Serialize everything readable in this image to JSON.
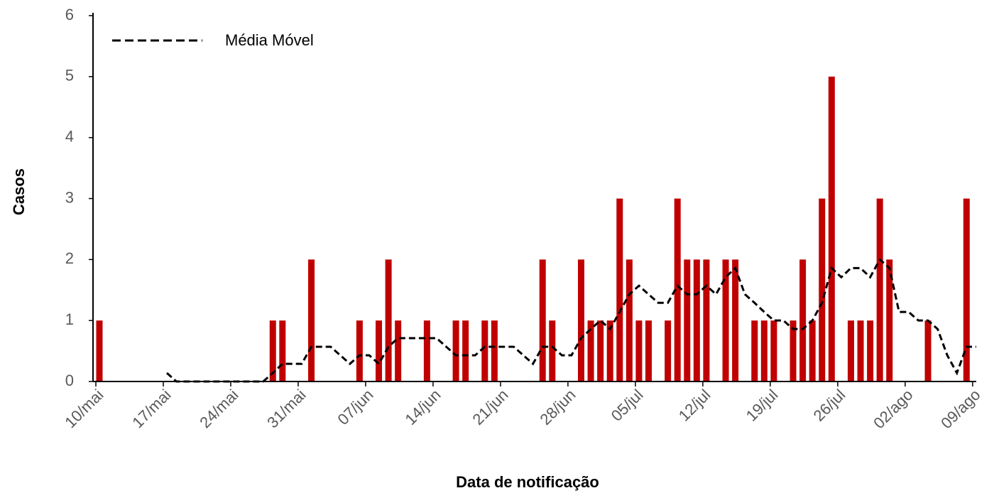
{
  "chart_data": {
    "type": "bar+line",
    "xlabel": "Data de notificação",
    "ylabel": "Casos",
    "categories": [
      "10/mai",
      null,
      null,
      null,
      null,
      null,
      null,
      "17/mai",
      null,
      null,
      null,
      null,
      null,
      null,
      "24/mai",
      null,
      null,
      null,
      null,
      null,
      null,
      "31/mai",
      null,
      null,
      null,
      null,
      null,
      null,
      "07/jun",
      null,
      null,
      null,
      null,
      null,
      null,
      "14/jun",
      null,
      null,
      null,
      null,
      null,
      null,
      "21/jun",
      null,
      null,
      null,
      null,
      null,
      null,
      "28/jun",
      null,
      null,
      null,
      null,
      null,
      null,
      "05/jul",
      null,
      null,
      null,
      null,
      null,
      null,
      "12/jul",
      null,
      null,
      null,
      null,
      null,
      null,
      "19/jul",
      null,
      null,
      null,
      null,
      null,
      null,
      "26/jul",
      null,
      null,
      null,
      null,
      null,
      null,
      "02/ago",
      null,
      null,
      null,
      null,
      null,
      null,
      "09/ago"
    ],
    "series": [
      {
        "type": "bar",
        "color": "#c00000",
        "values": [
          1,
          0,
          0,
          0,
          0,
          0,
          0,
          0,
          0,
          0,
          0,
          0,
          0,
          0,
          0,
          0,
          0,
          0,
          1,
          1,
          0,
          0,
          2,
          0,
          0,
          0,
          0,
          1,
          0,
          1,
          2,
          1,
          0,
          0,
          1,
          0,
          0,
          1,
          1,
          0,
          1,
          1,
          0,
          0,
          0,
          0,
          2,
          1,
          0,
          0,
          2,
          1,
          1,
          1,
          3,
          2,
          1,
          1,
          0,
          1,
          3,
          2,
          2,
          2,
          0,
          2,
          2,
          0,
          1,
          1,
          1,
          0,
          1,
          2,
          1,
          3,
          5,
          0,
          1,
          1,
          1,
          3,
          2,
          0,
          0,
          0,
          1,
          0,
          0,
          0,
          3,
          0
        ]
      },
      {
        "type": "line",
        "name": "Média Móvel",
        "color": "#000000",
        "dashed": true,
        "values": [
          null,
          null,
          null,
          null,
          null,
          null,
          null,
          0.14,
          0,
          0,
          0,
          0,
          0,
          0,
          0,
          0,
          0,
          0,
          0.14,
          0.29,
          0.29,
          0.29,
          0.57,
          0.57,
          0.57,
          0.43,
          0.29,
          0.43,
          0.43,
          0.29,
          0.57,
          0.71,
          0.71,
          0.71,
          0.71,
          0.71,
          0.57,
          0.43,
          0.43,
          0.43,
          0.57,
          0.57,
          0.57,
          0.57,
          0.43,
          0.29,
          0.57,
          0.57,
          0.43,
          0.43,
          0.71,
          0.86,
          1,
          0.86,
          1.14,
          1.43,
          1.57,
          1.43,
          1.29,
          1.29,
          1.57,
          1.43,
          1.43,
          1.57,
          1.43,
          1.71,
          1.86,
          1.43,
          1.29,
          1.14,
          1,
          1,
          0.86,
          0.86,
          1,
          1.29,
          1.86,
          1.71,
          1.86,
          1.86,
          1.71,
          2,
          1.86,
          1.14,
          1.14,
          1,
          1,
          0.86,
          0.43,
          0.14,
          0.57,
          0.57
        ]
      }
    ],
    "ylim": [
      0,
      6
    ],
    "yticks": [
      0,
      1,
      2,
      3,
      4,
      5,
      6
    ],
    "grid": false,
    "legend": "upper left"
  }
}
